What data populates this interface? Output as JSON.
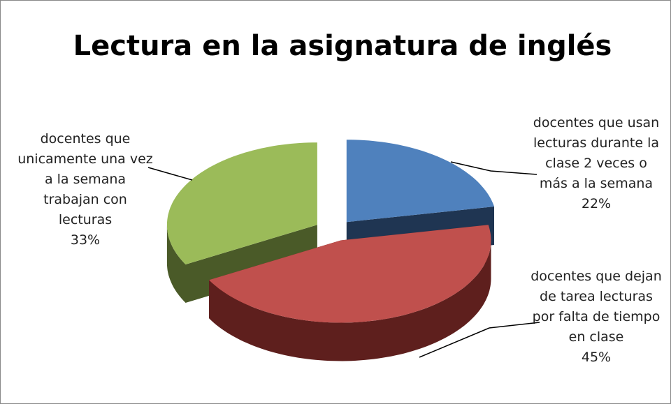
{
  "chart_data": {
    "type": "pie",
    "title": "Lectura en la asignatura de inglés",
    "categories": [
      "docentes que usan lecturas durante la clase 2 veces o más a la semana",
      "docentes que dejan de tarea lecturas por falta de tiempo en clase",
      "docentes que unicamente una vez a la semana trabajan con lecturas"
    ],
    "values": [
      22,
      45,
      33
    ],
    "value_labels": [
      "22%",
      "45%",
      "33%"
    ],
    "colors": [
      "#4f81bd",
      "#c0504d",
      "#9bbb59"
    ],
    "side_colors": [
      "#1f3552",
      "#5e1f1d",
      "#4a5a28"
    ]
  }
}
